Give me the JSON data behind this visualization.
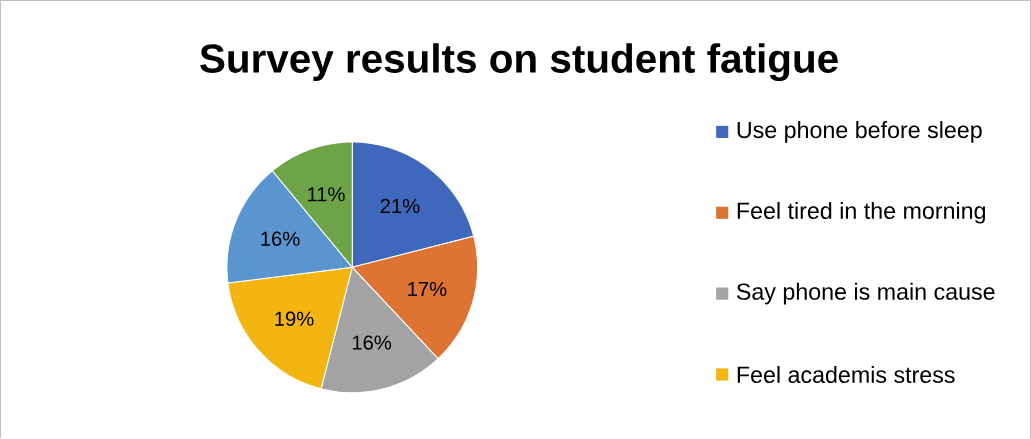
{
  "chart_data": {
    "type": "pie",
    "title": "Survey results on student fatigue",
    "categories": [
      "Use phone before sleep",
      "Feel tired in the morning",
      "Say phone is main cause",
      "Feel academis stress",
      null,
      null
    ],
    "values": [
      21,
      17,
      16,
      19,
      16,
      11
    ],
    "value_labels": [
      "21%",
      "17%",
      "16%",
      "19%",
      "16%",
      "11%"
    ],
    "colors": [
      "#3f68bd",
      "#dd7433",
      "#a3a3a3",
      "#f2b511",
      "#5b95cf",
      "#6ea448"
    ],
    "legend": "right"
  }
}
